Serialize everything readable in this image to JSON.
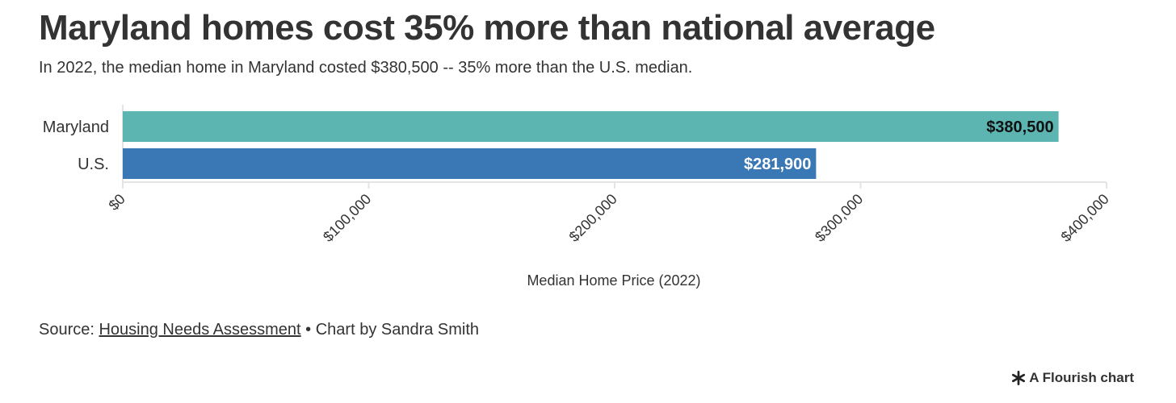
{
  "header": {
    "title": "Maryland homes cost 35% more than national average",
    "subtitle": "In 2022, the median home in Maryland costed $380,500 -- 35% more than the U.S. median."
  },
  "chart_data": {
    "type": "bar",
    "orientation": "horizontal",
    "categories": [
      "Maryland",
      "U.S."
    ],
    "values": [
      380500,
      281900
    ],
    "value_labels": [
      "$380,500",
      "$281,900"
    ],
    "colors": [
      "#5cb5b1",
      "#3a78b5"
    ],
    "label_colors": [
      "#111111",
      "#ffffff"
    ],
    "xlabel": "Median Home Price (2022)",
    "ylabel": "",
    "xlim": [
      0,
      400000
    ],
    "xticks": [
      0,
      100000,
      200000,
      300000,
      400000
    ],
    "xtick_labels": [
      "$0",
      "$100,000",
      "$200,000",
      "$300,000",
      "$400,000"
    ],
    "grid": false
  },
  "footer": {
    "source_prefix": "Source: ",
    "source_link": "Housing Needs Assessment",
    "source_suffix": " • Chart by Sandra Smith",
    "credit": "A Flourish chart"
  }
}
